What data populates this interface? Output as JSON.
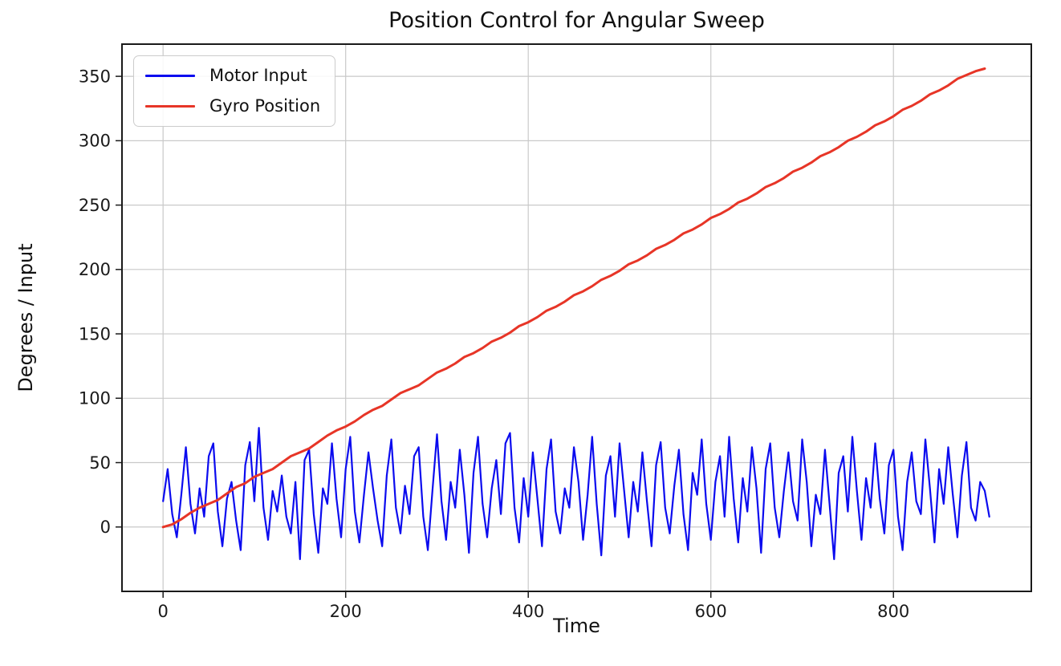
{
  "chart_data": {
    "type": "line",
    "title": "Position Control for Angular Sweep",
    "xlabel": "Time",
    "ylabel": "Degrees / Input",
    "xlim": [
      -45,
      951
    ],
    "ylim": [
      -50,
      375
    ],
    "xticks": [
      0,
      200,
      400,
      600,
      800
    ],
    "yticks": [
      0,
      50,
      100,
      150,
      200,
      250,
      300,
      350
    ],
    "grid": true,
    "grid_color": "#c9c9c9",
    "axis_color": "#1a1a1a",
    "background_color": "#ffffff",
    "legend": {
      "position": "upper left",
      "entries": [
        "Motor Input",
        "Gyro Position"
      ]
    },
    "series": [
      {
        "name": "Motor Input",
        "color": "#0b0bef",
        "x_start": 0,
        "x_step": 5,
        "y": [
          20,
          45,
          10,
          -8,
          25,
          62,
          18,
          -5,
          30,
          8,
          55,
          65,
          12,
          -15,
          22,
          35,
          5,
          -18,
          48,
          66,
          20,
          77,
          15,
          -10,
          28,
          12,
          40,
          8,
          -5,
          35,
          -25,
          52,
          60,
          10,
          -20,
          30,
          18,
          65,
          22,
          -8,
          45,
          70,
          12,
          -12,
          25,
          58,
          30,
          5,
          -15,
          40,
          68,
          15,
          -5,
          32,
          10,
          55,
          62,
          8,
          -18,
          28,
          72,
          20,
          -10,
          35,
          15,
          60,
          25,
          -20,
          42,
          70,
          18,
          -8,
          30,
          52,
          10,
          65,
          73,
          15,
          -12,
          38,
          8,
          58,
          22,
          -15,
          45,
          68,
          12,
          -5,
          30,
          15,
          62,
          35,
          -10,
          25,
          70,
          18,
          -22,
          40,
          55,
          8,
          65,
          28,
          -8,
          35,
          12,
          58,
          20,
          -15,
          48,
          66,
          15,
          -5,
          32,
          60,
          10,
          -18,
          42,
          25,
          68,
          18,
          -10,
          35,
          55,
          8,
          70,
          22,
          -12,
          38,
          12,
          62,
          30,
          -20,
          45,
          65,
          15,
          -8,
          28,
          58,
          20,
          5,
          68,
          35,
          -15,
          25,
          10,
          60,
          18,
          -25,
          42,
          55,
          12,
          70,
          28,
          -10,
          38,
          15,
          65,
          22,
          -5,
          48,
          60,
          8,
          -18,
          35,
          58,
          20,
          10,
          68,
          30,
          -12,
          45,
          18,
          62,
          25,
          -8,
          40,
          66,
          15,
          5,
          35,
          28,
          8
        ]
      },
      {
        "name": "Gyro Position",
        "color": "#e73527",
        "x_start": 0,
        "x_step": 10,
        "y": [
          0,
          2,
          6,
          11,
          15,
          18,
          21,
          26,
          31,
          34,
          39,
          42,
          45,
          50,
          55,
          58,
          61,
          66,
          71,
          75,
          78,
          82,
          87,
          91,
          94,
          99,
          104,
          107,
          110,
          115,
          120,
          123,
          127,
          132,
          135,
          139,
          144,
          147,
          151,
          156,
          159,
          163,
          168,
          171,
          175,
          180,
          183,
          187,
          192,
          195,
          199,
          204,
          207,
          211,
          216,
          219,
          223,
          228,
          231,
          235,
          240,
          243,
          247,
          252,
          255,
          259,
          264,
          267,
          271,
          276,
          279,
          283,
          288,
          291,
          295,
          300,
          303,
          307,
          312,
          315,
          319,
          324,
          327,
          331,
          336,
          339,
          343,
          348,
          351,
          354,
          356
        ]
      }
    ]
  }
}
